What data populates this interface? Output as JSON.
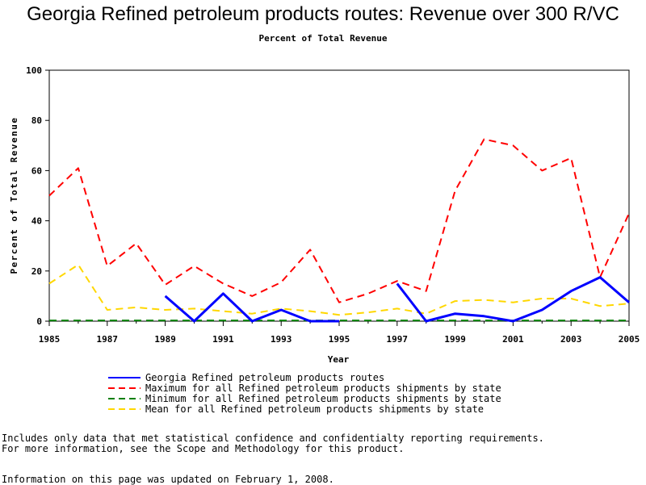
{
  "title": "Georgia Refined petroleum products routes: Revenue over 300 R/VC",
  "subtitle": "Percent of Total Revenue",
  "notes": {
    "line1": "Includes only data that met statistical confidence and confidentialty reporting requirements.",
    "line2": "For more information, see the Scope and Methodology for this product.",
    "updated": "Information on this page was updated on February 1, 2008."
  },
  "chart_data": {
    "type": "line",
    "xlabel": "Year",
    "ylabel": "Percent of Total Revenue",
    "xlim": [
      1985,
      2005
    ],
    "ylim": [
      0,
      100
    ],
    "x_ticks": [
      1985,
      1987,
      1989,
      1991,
      1993,
      1995,
      1997,
      1999,
      2001,
      2003,
      2005
    ],
    "y_ticks": [
      0,
      20,
      40,
      60,
      80,
      100
    ],
    "grid": false,
    "legend_position": "bottom",
    "series": [
      {
        "name": "Georgia Refined petroleum products routes",
        "color": "#0000ff",
        "style": "solid",
        "points": [
          [
            1989,
            10
          ],
          [
            1990,
            0
          ],
          [
            1991,
            11
          ],
          [
            1992,
            0
          ],
          [
            1993,
            4.5
          ],
          [
            1994,
            0
          ],
          [
            1995,
            0
          ],
          [
            1996,
            null
          ],
          [
            1997,
            15
          ],
          [
            1998,
            0
          ],
          [
            1999,
            3
          ],
          [
            2000,
            2
          ],
          [
            2001,
            0
          ],
          [
            2002,
            4.5
          ],
          [
            2003,
            12
          ],
          [
            2004,
            17.5
          ],
          [
            2005,
            7.5
          ]
        ]
      },
      {
        "name": "Maximum for all Refined petroleum products shipments by state",
        "color": "#ff0000",
        "style": "dashed",
        "points": [
          [
            1985,
            50
          ],
          [
            1986,
            61
          ],
          [
            1987,
            22
          ],
          [
            1988,
            31
          ],
          [
            1989,
            14.5
          ],
          [
            1990,
            22
          ],
          [
            1991,
            15
          ],
          [
            1992,
            10
          ],
          [
            1993,
            15.5
          ],
          [
            1994,
            28.5
          ],
          [
            1995,
            7.5
          ],
          [
            1996,
            11
          ],
          [
            1997,
            16
          ],
          [
            1998,
            12
          ],
          [
            1999,
            52
          ],
          [
            2000,
            72.5
          ],
          [
            2001,
            70
          ],
          [
            2002,
            60
          ],
          [
            2003,
            65
          ],
          [
            2004,
            17.5
          ],
          [
            2005,
            43
          ]
        ]
      },
      {
        "name": "Minimum for all Refined petroleum products shipments by state",
        "color": "#007f00",
        "style": "dashed",
        "points": [
          [
            1985,
            0.3
          ],
          [
            1986,
            0.3
          ],
          [
            1987,
            0.3
          ],
          [
            1988,
            0.3
          ],
          [
            1989,
            0.3
          ],
          [
            1990,
            0.3
          ],
          [
            1991,
            0.3
          ],
          [
            1992,
            0.3
          ],
          [
            1993,
            0.3
          ],
          [
            1994,
            0.3
          ],
          [
            1995,
            0.3
          ],
          [
            1996,
            0.3
          ],
          [
            1997,
            0.3
          ],
          [
            1998,
            0.3
          ],
          [
            1999,
            0.3
          ],
          [
            2000,
            0.3
          ],
          [
            2001,
            0.3
          ],
          [
            2002,
            0.3
          ],
          [
            2003,
            0.3
          ],
          [
            2004,
            0.3
          ],
          [
            2005,
            0.3
          ]
        ]
      },
      {
        "name": "Mean for all Refined petroleum products shipments by state",
        "color": "#ffd700",
        "style": "dashed",
        "points": [
          [
            1985,
            15
          ],
          [
            1986,
            22.5
          ],
          [
            1987,
            4.5
          ],
          [
            1988,
            5.5
          ],
          [
            1989,
            4.5
          ],
          [
            1990,
            5
          ],
          [
            1991,
            4
          ],
          [
            1992,
            3
          ],
          [
            1993,
            5
          ],
          [
            1994,
            4
          ],
          [
            1995,
            2.5
          ],
          [
            1996,
            3.5
          ],
          [
            1997,
            5
          ],
          [
            1998,
            3
          ],
          [
            1999,
            8
          ],
          [
            2000,
            8.5
          ],
          [
            2001,
            7.5
          ],
          [
            2002,
            9
          ],
          [
            2003,
            9
          ],
          [
            2004,
            6
          ],
          [
            2005,
            7
          ]
        ]
      }
    ]
  }
}
